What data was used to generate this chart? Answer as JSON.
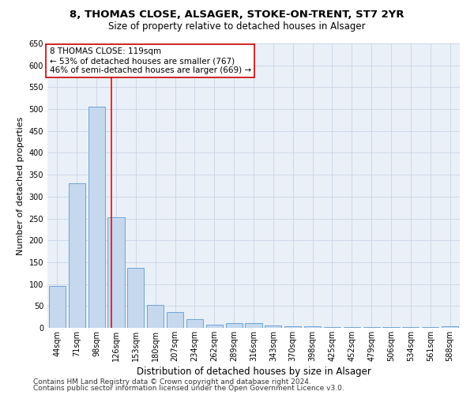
{
  "title1": "8, THOMAS CLOSE, ALSAGER, STOKE-ON-TRENT, ST7 2YR",
  "title2": "Size of property relative to detached houses in Alsager",
  "xlabel": "Distribution of detached houses by size in Alsager",
  "ylabel": "Number of detached properties",
  "categories": [
    "44sqm",
    "71sqm",
    "98sqm",
    "126sqm",
    "153sqm",
    "180sqm",
    "207sqm",
    "234sqm",
    "262sqm",
    "289sqm",
    "316sqm",
    "343sqm",
    "370sqm",
    "398sqm",
    "425sqm",
    "452sqm",
    "479sqm",
    "506sqm",
    "534sqm",
    "561sqm",
    "588sqm"
  ],
  "values": [
    95,
    330,
    505,
    252,
    137,
    53,
    37,
    20,
    8,
    10,
    10,
    5,
    3,
    3,
    2,
    2,
    2,
    1,
    1,
    1,
    4
  ],
  "bar_color": "#c5d8ed",
  "bar_edge_color": "#5b9bd5",
  "annotation_line1": "8 THOMAS CLOSE: 119sqm",
  "annotation_line2": "← 53% of detached houses are smaller (767)",
  "annotation_line3": "46% of semi-detached houses are larger (669) →",
  "annotation_box_color": "#ffffff",
  "annotation_box_edge": "#cc0000",
  "ylim": [
    0,
    650
  ],
  "yticks": [
    0,
    50,
    100,
    150,
    200,
    250,
    300,
    350,
    400,
    450,
    500,
    550,
    600,
    650
  ],
  "footer1": "Contains HM Land Registry data © Crown copyright and database right 2024.",
  "footer2": "Contains public sector information licensed under the Open Government Licence v3.0.",
  "background_color": "#ffffff",
  "ax_background_color": "#eaf0f8",
  "grid_color": "#c8d4e4",
  "title1_fontsize": 9.5,
  "title2_fontsize": 8.5,
  "xlabel_fontsize": 8.5,
  "ylabel_fontsize": 8,
  "tick_fontsize": 7,
  "annotation_fontsize": 7.5,
  "footer_fontsize": 6.5
}
